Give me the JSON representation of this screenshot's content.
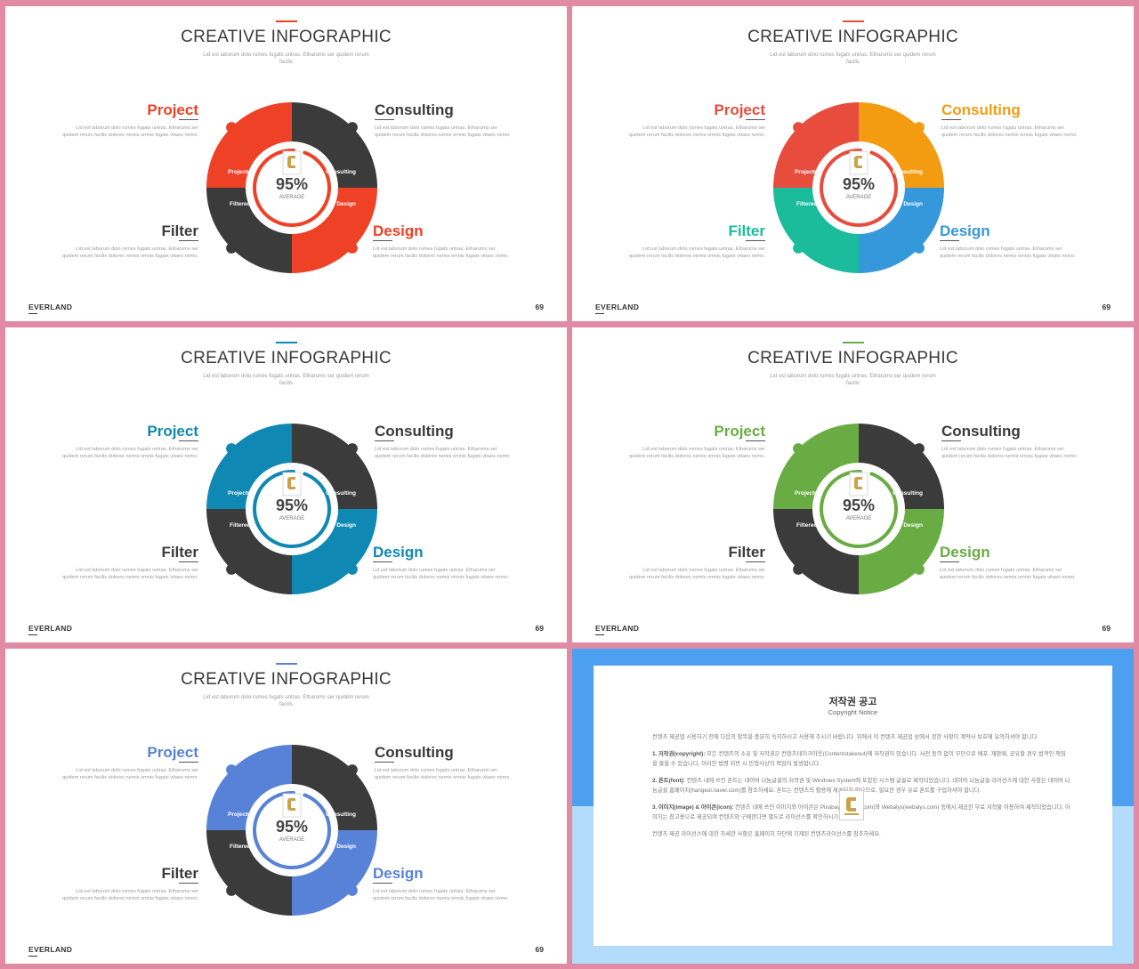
{
  "slide_common": {
    "title": "CREATIVE INFOGRAPHIC",
    "subtitle": "Lid est laborum dolo rumes fugats untras. Etharums ser quidem rerum facilis",
    "project_label": "Project",
    "consulting_label": "Consulting",
    "filter_label": "Filter",
    "design_label": "Design",
    "project_desc": "Lid est laborum dolo rumes fugats untras. Etharums ser quidem rerum facilis dolores nemis omnis fugats vitaes nemo.",
    "consulting_desc": "Lid est laborum dolo rumes fugats untras. Etharums ser quidem rerum facilis dolores nemis omnis fugats vitaes nemo.",
    "filter_desc": "Lid est laborum dolo rumes fugats untras. Etharums ser quidem rerum facilis dolores nemis omnis fugats vitaes nemo.",
    "design_desc": "Lid est laborum dolo rumes fugats untras. Etharums ser quidem rerum facilis dolores nemis omnis fugats vitaes nemo.",
    "seg_projectus": "Projectus",
    "seg_consulting": "Consulting",
    "seg_filtered": "Filtered",
    "seg_design": "Design",
    "center_value": "95%",
    "center_label": "AVERAGE",
    "progress": 0.95,
    "brand": "EVERLAND",
    "page_number": "69"
  },
  "slides": [
    {
      "theme": "red",
      "colors": {
        "project": "#ee4126",
        "consulting": "#3b3b3b",
        "filter": "#3b3b3b",
        "design": "#ee4126",
        "label_filter": "#3b3b3b",
        "label_consulting": "#3b3b3b"
      }
    },
    {
      "theme": "multicolor",
      "colors": {
        "project": "#e84c3d",
        "consulting": "#f39c12",
        "filter": "#1abc9c",
        "design": "#3498db",
        "label_filter": "#1abc9c",
        "label_consulting": "#f39c12"
      }
    },
    {
      "theme": "teal-blue",
      "colors": {
        "project": "#1088b4",
        "consulting": "#3b3b3b",
        "filter": "#3b3b3b",
        "design": "#1088b4",
        "label_filter": "#3b3b3b",
        "label_consulting": "#3b3b3b"
      }
    },
    {
      "theme": "green",
      "colors": {
        "project": "#6aac44",
        "consulting": "#3b3b3b",
        "filter": "#3b3b3b",
        "design": "#6aac44",
        "label_filter": "#3b3b3b",
        "label_consulting": "#3b3b3b"
      }
    },
    {
      "theme": "blue",
      "colors": {
        "project": "#5882d8",
        "consulting": "#3b3b3b",
        "filter": "#3b3b3b",
        "design": "#5882d8",
        "label_filter": "#3b3b3b",
        "label_consulting": "#3b3b3b"
      }
    }
  ],
  "notice": {
    "title": "저작권 공고",
    "subtitle": "Copyright Notice",
    "intro": "컨텐츠 제공업 시용하기 전에 다음의 항목을 충분히 숙지하시고 사용해 주시기 바랍니다. 위에서 이 컨텐츠 제공업 상에서 정한 사항이 계약서 보호에 유의하셔야 합니다.",
    "p1_head": "1. 저작권(copyright):",
    "p1_body": " 모든 컨텐츠의 소유 및 저작권은 컨텐츠테이크아웃(Contentstakeout)에 저작권이 있습니다. 사전 동의 없이 무단으로 배포, 재판매, 공유할 경우 법적인 책임을 물을 수 있습니다. 이러한 법령 위반 시 민형사상의 책임이 발생합니다.",
    "p2_head": "2. 폰트(font):",
    "p2_body": " 컨텐츠 내에 쓰인 폰트는 네이버 나눔글꼴의 저작권 및 Windows System에 포함된 시스템 글꼴로 제작되었습니다. 네이버 나눔글꼴 라이선스에 대한 사항은 네이버 나눔글꼴 홈페이지(hangeul.naver.com)를 참조하세요. 폰트는 컨텐츠의 활용에 제공되지 않으므로, 필요한 경우 유료 폰트를 구입하셔야 합니다.",
    "p3_head": "3. 이미지(image) & 아이콘(icon):",
    "p3_body": " 컨텐츠 내에 쓰인 이미지와 아이콘은 Pixabay(pixabay.com)와 Webalys(webalys.com) 등에서 제공한 무료 저작물 이용하여 제작되었습니다. 이미지는 참고용으로 제공되며 컨텐츠와 구매한다면 별도로 라이선스를 확인하시기 바랍니다.",
    "footer": "컨텐츠 제공 라이선스에 대한 자세한 사항은 홈페이지 하단에 기재된 컨텐츠라이선스를 참조하세요."
  }
}
